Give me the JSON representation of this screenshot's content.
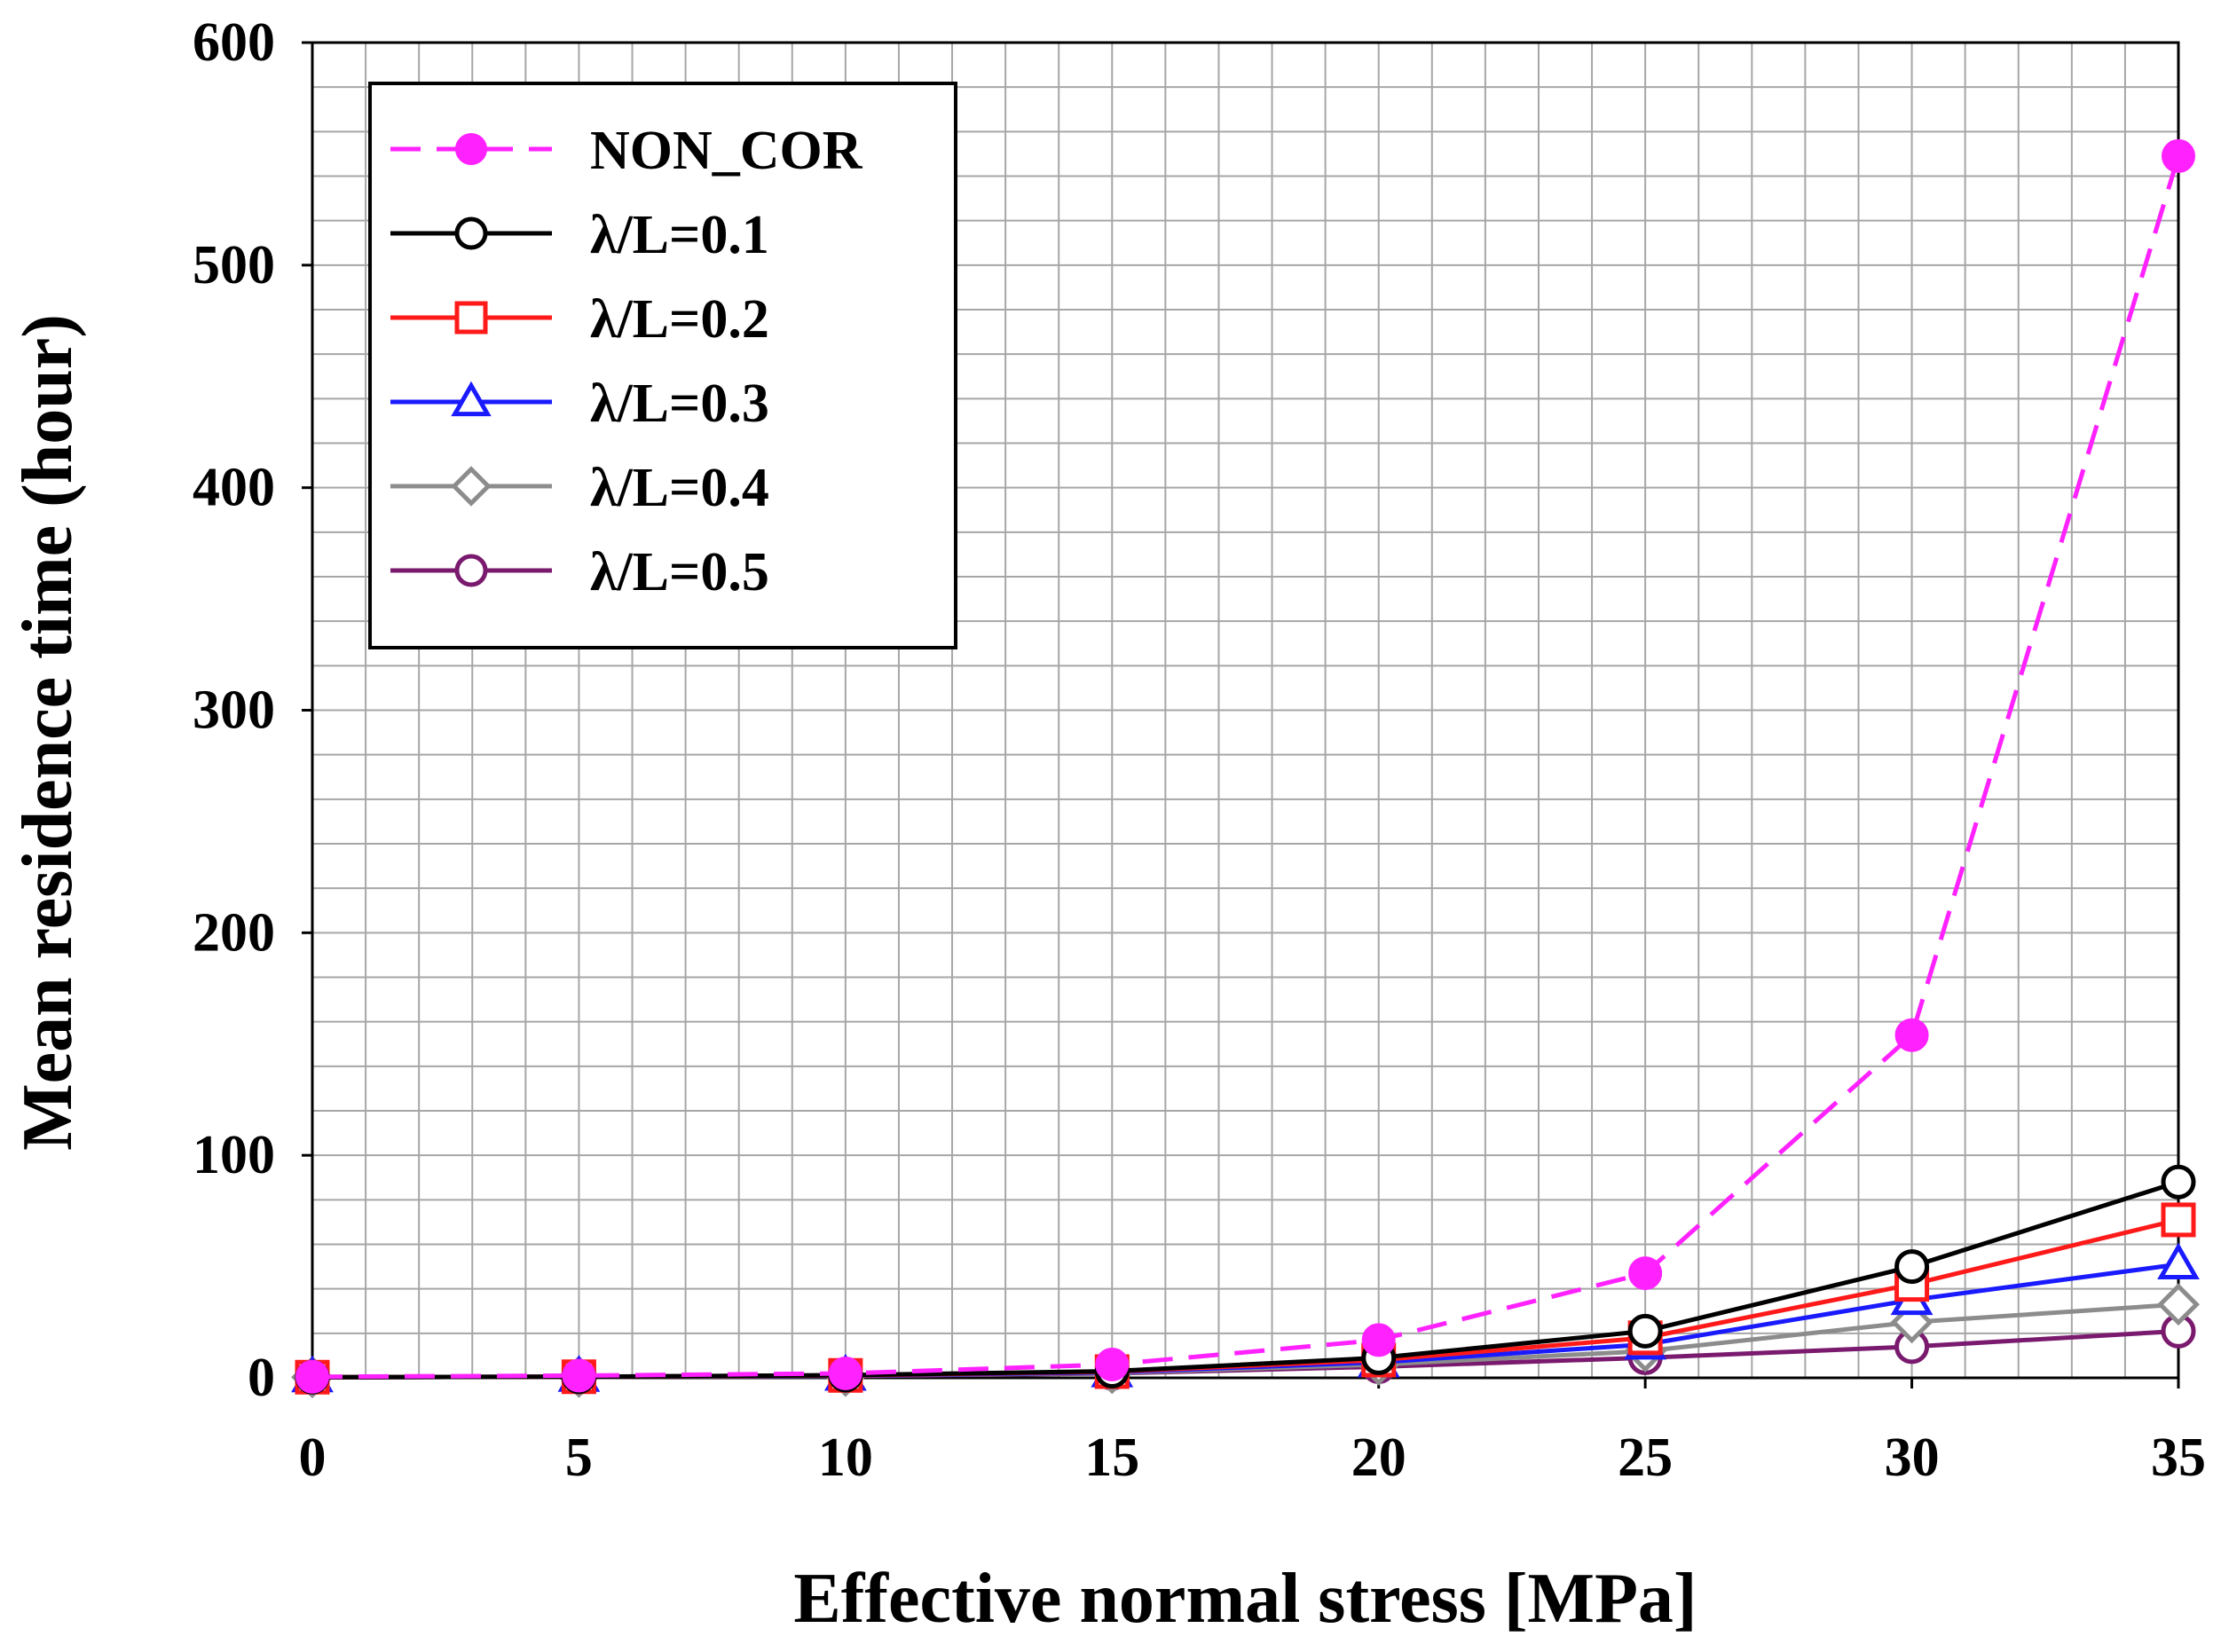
{
  "chart_data": {
    "type": "line",
    "title": "",
    "xlabel": "Effective normal stress [MPa]",
    "ylabel": "Mean residence time (hour)",
    "xlim": [
      0,
      35
    ],
    "ylim": [
      0,
      600
    ],
    "x_ticks": [
      0,
      5,
      10,
      15,
      20,
      25,
      30,
      35
    ],
    "x_tick_labels": [
      "0",
      "5",
      "10",
      "15",
      "20",
      "25",
      "30",
      "35"
    ],
    "y_ticks": [
      0,
      100,
      200,
      300,
      400,
      500,
      600
    ],
    "y_tick_labels": [
      "0",
      "100",
      "200",
      "300",
      "400",
      "500",
      "600"
    ],
    "grid": true,
    "legend_position": "top-left",
    "x": [
      0,
      5,
      10,
      15,
      20,
      25,
      30,
      35
    ],
    "series": [
      {
        "name": "NON_COR",
        "color": "#ff22ff",
        "dash": true,
        "marker": "filled-circle",
        "values": [
          0.5,
          1,
          2,
          6,
          17,
          47,
          154,
          549
        ]
      },
      {
        "name": "λ/L=0.1",
        "color": "#000000",
        "dash": false,
        "marker": "circle",
        "values": [
          0.3,
          0.5,
          1.2,
          3,
          9,
          21,
          50,
          88
        ]
      },
      {
        "name": "λ/L=0.2",
        "color": "#ff1a1a",
        "dash": false,
        "marker": "square",
        "values": [
          0.3,
          0.5,
          1.1,
          2.8,
          8,
          18,
          42,
          71
        ]
      },
      {
        "name": "λ/L=0.3",
        "color": "#1a1aff",
        "dash": false,
        "marker": "triangle",
        "values": [
          0.3,
          0.5,
          1.0,
          2.5,
          7,
          15,
          35,
          51
        ]
      },
      {
        "name": "λ/L=0.4",
        "color": "#8c8c8c",
        "dash": false,
        "marker": "diamond",
        "values": [
          0.3,
          0.5,
          0.9,
          2.2,
          6,
          12,
          25,
          33
        ]
      },
      {
        "name": "λ/L=0.5",
        "color": "#7a1a6e",
        "dash": false,
        "marker": "circle",
        "values": [
          0.3,
          0.5,
          0.8,
          2,
          5,
          9,
          14,
          21
        ]
      }
    ]
  }
}
